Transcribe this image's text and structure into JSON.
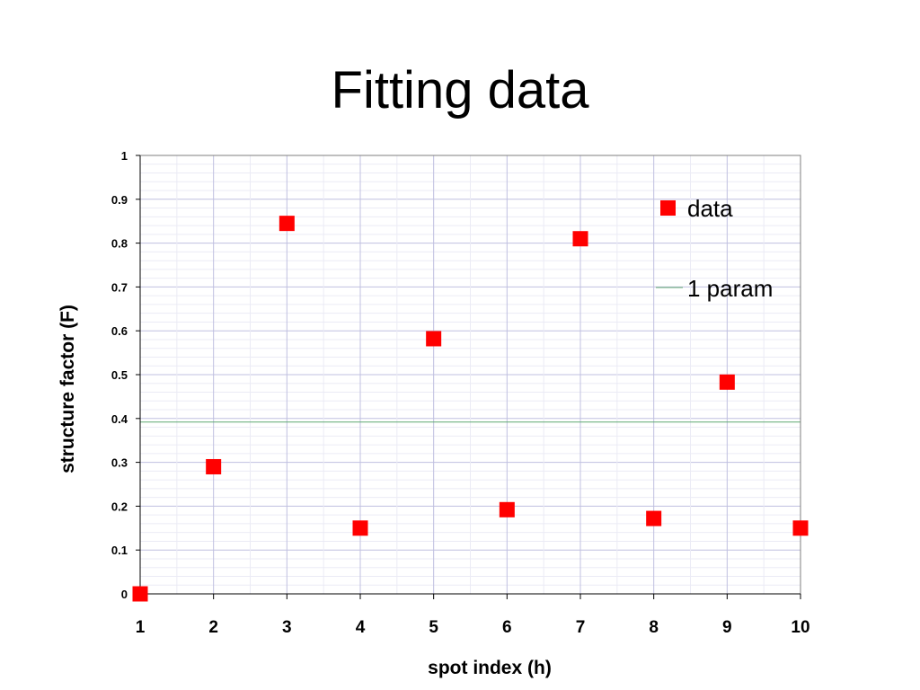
{
  "slide": {
    "title": "Fitting data"
  },
  "chart_data": {
    "type": "scatter",
    "title": "Fitting data",
    "xlabel": "spot index (h)",
    "ylabel": "structure factor (F)",
    "xlim": [
      1,
      10
    ],
    "ylim": [
      0,
      1
    ],
    "x_ticks": [
      "1",
      "2",
      "3",
      "4",
      "5",
      "6",
      "7",
      "8",
      "9",
      "10"
    ],
    "y_ticks": [
      "0",
      "0.1",
      "0.2",
      "0.3",
      "0.4",
      "0.5",
      "0.6",
      "0.7",
      "0.8",
      "0.9",
      "1"
    ],
    "grid": true,
    "legend_placement": "top-right",
    "series": [
      {
        "name": "data",
        "kind": "markers",
        "marker": "square",
        "color": "#ff0000",
        "x": [
          1,
          2,
          3,
          4,
          5,
          6,
          7,
          8,
          9,
          10
        ],
        "y": [
          0.0,
          0.29,
          0.845,
          0.15,
          0.582,
          0.192,
          0.81,
          0.172,
          0.483,
          0.15
        ]
      },
      {
        "name": "1 param",
        "kind": "line",
        "color": "#5fa870",
        "x": [
          1,
          10
        ],
        "y": [
          0.392,
          0.392
        ]
      }
    ],
    "colors": {
      "grid_major": "#c0c0e0",
      "grid_minor": "#ebebf5",
      "axis": "#000000"
    }
  }
}
